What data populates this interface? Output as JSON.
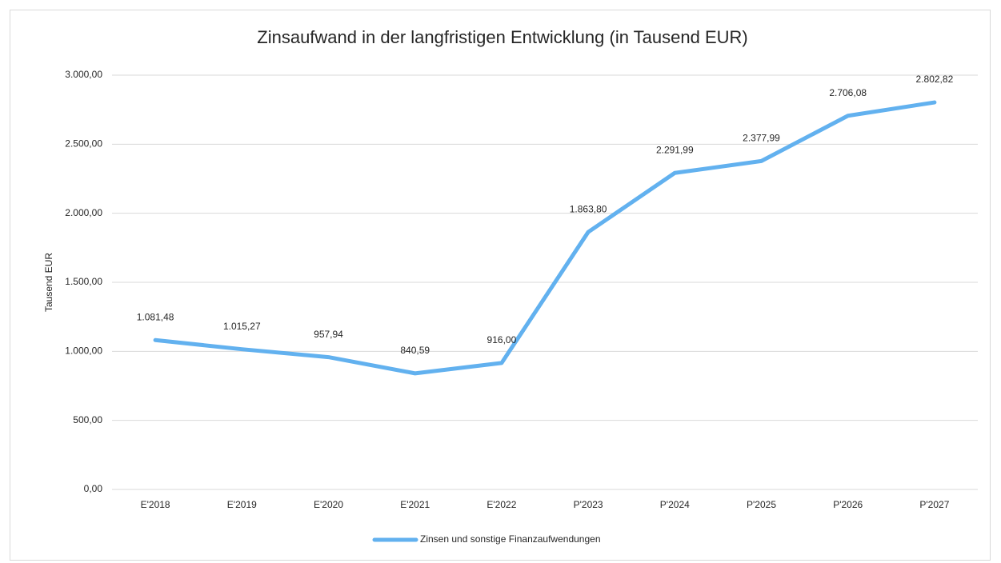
{
  "chart_data": {
    "type": "line",
    "title": "Zinsaufwand in der langfristigen Entwicklung (in Tausend EUR)",
    "y_label": "Tausend EUR",
    "categories": [
      "E'2018",
      "E'2019",
      "E'2020",
      "E'2021",
      "E'2022",
      "P'2023",
      "P'2024",
      "P'2025",
      "P'2026",
      "P'2027"
    ],
    "series": [
      {
        "name": "Zinsen und sonstige Finanzaufwendungen",
        "color": "#62b1ef",
        "values": [
          1081.48,
          1015.27,
          957.94,
          840.59,
          916.0,
          1863.8,
          2291.99,
          2377.99,
          2706.08,
          2802.82
        ],
        "value_labels": [
          "1.081,48",
          "1.015,27",
          "957,94",
          "840,59",
          "916,00",
          "1.863,80",
          "2.291,99",
          "2.377,99",
          "2.706,08",
          "2.802,82"
        ]
      }
    ],
    "ylim": [
      0,
      3000
    ],
    "yticks": [
      {
        "value": 0,
        "label": "0,00"
      },
      {
        "value": 500,
        "label": "500,00"
      },
      {
        "value": 1000,
        "label": "1.000,00"
      },
      {
        "value": 1500,
        "label": "1.500,00"
      },
      {
        "value": 2000,
        "label": "2.000,00"
      },
      {
        "value": 2500,
        "label": "2.500,00"
      },
      {
        "value": 3000,
        "label": "3.000,00"
      }
    ],
    "grid": true,
    "legend": "bottom"
  }
}
